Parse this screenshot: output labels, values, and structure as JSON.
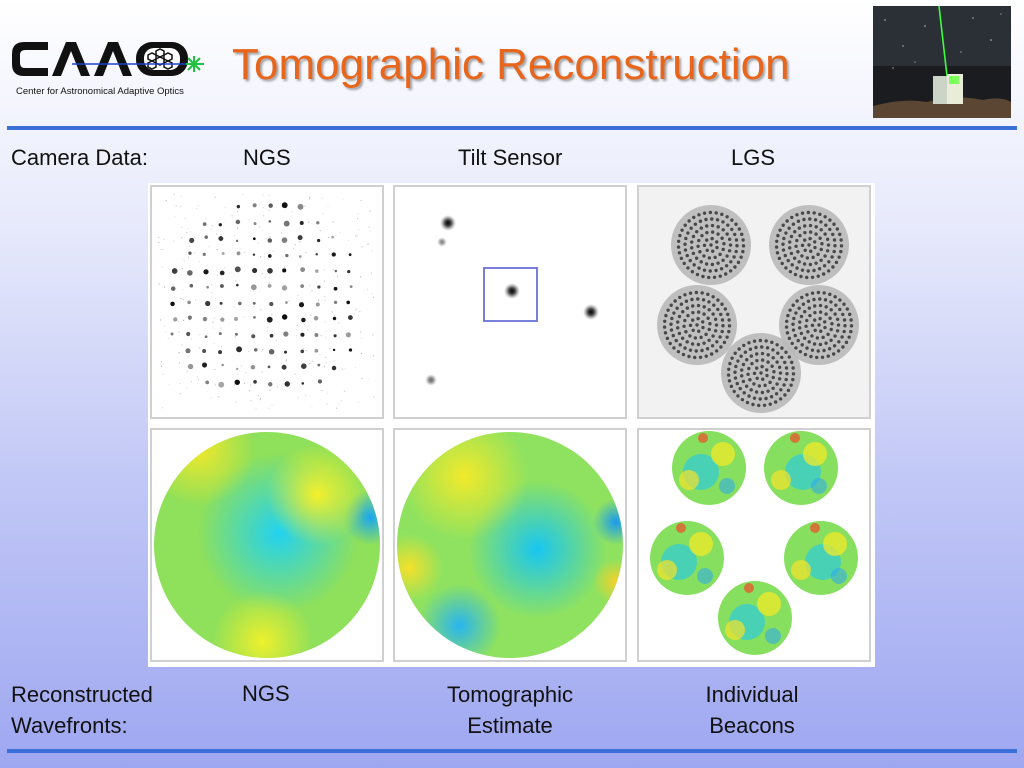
{
  "title": "Tomographic Reconstruction",
  "logo": {
    "text": "CAAO",
    "subtitle": "Center for Astronomical Adaptive Optics"
  },
  "labels": {
    "camera_data": "Camera Data:",
    "col_ngs": "NGS",
    "col_tilt": "Tilt Sensor",
    "col_lgs": "LGS",
    "reconstructed_line1": "Reconstructed",
    "reconstructed_line2": "Wavefronts:",
    "bottom_ngs": "NGS",
    "tomographic_line1": "Tomographic",
    "tomographic_line2": "Estimate",
    "individual_line1": "Individual",
    "individual_line2": "Beacons"
  },
  "colors": {
    "title": "#e8661c",
    "rule": "#3a6fd8",
    "tilt_box": "#6a72d8"
  }
}
